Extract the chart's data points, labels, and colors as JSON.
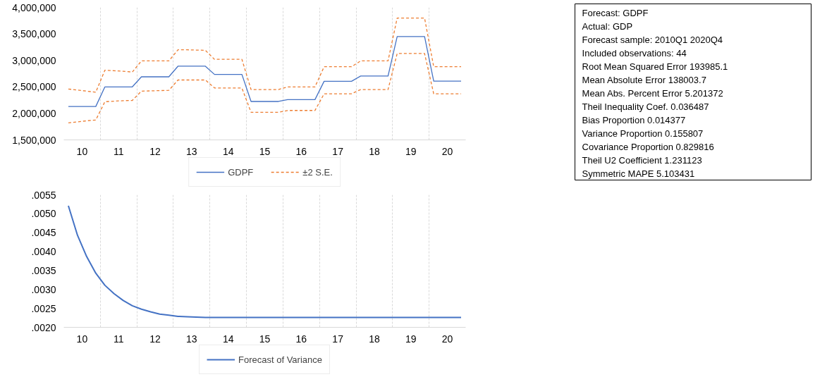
{
  "chart_data": [
    {
      "type": "line",
      "x": [
        9.625,
        9.875,
        10.125,
        10.375,
        10.625,
        10.875,
        11.125,
        11.375,
        11.625,
        11.875,
        12.125,
        12.375,
        12.625,
        12.875,
        13.125,
        13.375,
        13.625,
        13.875,
        14.125,
        14.375,
        14.625,
        14.875,
        15.125,
        15.375,
        15.625,
        15.875,
        16.125,
        16.375,
        16.625,
        16.875,
        17.125,
        17.375,
        17.625,
        17.875,
        18.125,
        18.375,
        18.625,
        18.875,
        19.125,
        19.375,
        19.625,
        19.875,
        20.125,
        20.375
      ],
      "xlim": [
        9.5,
        20.5
      ],
      "xticks": [
        10,
        {
          "value": 10.5,
          "label": null
        },
        11,
        {
          "value": 11.5,
          "label": null
        },
        12,
        {
          "value": 12.5,
          "label": null
        },
        13,
        {
          "value": 13.5,
          "label": null
        },
        14,
        {
          "value": 14.5,
          "label": null
        },
        15,
        {
          "value": 15.5,
          "label": null
        },
        16,
        {
          "value": 16.5,
          "label": null
        },
        17,
        {
          "value": 17.5,
          "label": null
        },
        18,
        {
          "value": 18.5,
          "label": null
        },
        19,
        {
          "value": 19.5,
          "label": null
        },
        20
      ],
      "ylim": [
        1500000,
        4000000
      ],
      "yticks": [
        {
          "value": 1500000,
          "label": "1,500,000"
        },
        {
          "value": 2000000,
          "label": "2,000,000"
        },
        {
          "value": 2500000,
          "label": "2,500,000"
        },
        {
          "value": 3000000,
          "label": "3,000,000"
        },
        {
          "value": 3500000,
          "label": "3,500,000"
        },
        {
          "value": 4000000,
          "label": "4,000,000"
        }
      ],
      "grid": "x",
      "legend": "bottom",
      "series": [
        {
          "name": "GDPF",
          "color": "#4472c4",
          "line_style": "solid",
          "values": [
            2130000,
            2130000,
            2130000,
            2130000,
            2500000,
            2500000,
            2500000,
            2500000,
            2690000,
            2690000,
            2690000,
            2690000,
            2890000,
            2890000,
            2890000,
            2890000,
            2735000,
            2735000,
            2735000,
            2735000,
            2225000,
            2225000,
            2225000,
            2225000,
            2260000,
            2260000,
            2260000,
            2260000,
            2605000,
            2605000,
            2605000,
            2605000,
            2705000,
            2705000,
            2705000,
            2705000,
            3450000,
            3450000,
            3450000,
            3450000,
            2610000,
            2610000,
            2610000,
            2610000
          ]
        },
        {
          "name": "±2 S.E.",
          "color": "#ed7d31",
          "line_style": "dashed",
          "values": [
            2460000,
            2440000,
            2420000,
            2400000,
            2815000,
            2805000,
            2795000,
            2780000,
            2990000,
            2990000,
            2990000,
            2990000,
            3200000,
            3200000,
            3195000,
            3190000,
            3020000,
            3020000,
            3020000,
            3020000,
            2450000,
            2450000,
            2450000,
            2450000,
            2500000,
            2500000,
            2500000,
            2500000,
            2880000,
            2880000,
            2880000,
            2880000,
            2990000,
            2990000,
            2990000,
            2990000,
            3800000,
            3800000,
            3800000,
            3800000,
            2880000,
            2880000,
            2880000,
            2880000
          ]
        },
        {
          "color": "#ed7d31",
          "line_style": "dashed",
          "values": [
            1820000,
            1840000,
            1860000,
            1875000,
            2220000,
            2230000,
            2240000,
            2245000,
            2420000,
            2425000,
            2430000,
            2435000,
            2630000,
            2630000,
            2630000,
            2630000,
            2480000,
            2480000,
            2480000,
            2480000,
            2020000,
            2020000,
            2020000,
            2020000,
            2055000,
            2055000,
            2055000,
            2055000,
            2370000,
            2370000,
            2370000,
            2370000,
            2450000,
            2450000,
            2450000,
            2450000,
            3130000,
            3130000,
            3130000,
            3130000,
            2370000,
            2370000,
            2370000,
            2370000
          ]
        }
      ]
    },
    {
      "type": "other",
      "annotations": [
        "Forecast: GDPF",
        "Actual: GDP",
        "Forecast sample: 2010Q1 2020Q4",
        "Included observations: 44",
        "Root Mean Squared Error 193985.1",
        "Mean Absolute Error 138003.7",
        "Mean Abs. Percent Error 5.201372",
        "Theil Inequality Coef. 0.036487",
        "Bias Proportion 0.014377",
        "Variance Proportion 0.155807",
        "Covariance Proportion 0.829816",
        "Theil U2 Coefficient 1.231123",
        "Symmetric MAPE 5.103431"
      ]
    },
    {
      "type": "line",
      "x": [
        9.625,
        9.875,
        10.125,
        10.375,
        10.625,
        10.875,
        11.125,
        11.375,
        11.625,
        11.875,
        12.125,
        12.375,
        12.625,
        12.875,
        13.125,
        13.375,
        13.625,
        13.875,
        14.125,
        14.375,
        14.625,
        14.875,
        15.125,
        15.375,
        15.625,
        15.875,
        16.125,
        16.375,
        16.625,
        16.875,
        17.125,
        17.375,
        17.625,
        17.875,
        18.125,
        18.375,
        18.625,
        18.875,
        19.125,
        19.375,
        19.625,
        19.875,
        20.125,
        20.375
      ],
      "xlim": [
        9.5,
        20.5
      ],
      "xticks": [
        10,
        {
          "value": 10.5,
          "label": null
        },
        11,
        {
          "value": 11.5,
          "label": null
        },
        12,
        {
          "value": 12.5,
          "label": null
        },
        13,
        {
          "value": 13.5,
          "label": null
        },
        14,
        {
          "value": 14.5,
          "label": null
        },
        15,
        {
          "value": 15.5,
          "label": null
        },
        16,
        {
          "value": 16.5,
          "label": null
        },
        17,
        {
          "value": 17.5,
          "label": null
        },
        18,
        {
          "value": 18.5,
          "label": null
        },
        19,
        {
          "value": 19.5,
          "label": null
        },
        20
      ],
      "ylim": [
        0.002,
        0.0055
      ],
      "yticks": [
        {
          "value": 0.002,
          "label": ".0020"
        },
        {
          "value": 0.0025,
          "label": ".0025"
        },
        {
          "value": 0.003,
          "label": ".0030"
        },
        {
          "value": 0.0035,
          "label": ".0035"
        },
        {
          "value": 0.004,
          "label": ".0040"
        },
        {
          "value": 0.0045,
          "label": ".0045"
        },
        {
          "value": 0.005,
          "label": ".0050"
        },
        {
          "value": 0.0055,
          "label": ".0055"
        }
      ],
      "grid": "x",
      "legend": "bottom",
      "series": [
        {
          "name": "Forecast of Variance",
          "color": "#4472c4",
          "line_style": "solid",
          "values": [
            0.00521,
            0.00443,
            0.00387,
            0.00343,
            0.00311,
            0.00289,
            0.00271,
            0.00257,
            0.00248,
            0.00241,
            0.00235,
            0.00232,
            0.00229,
            0.00228,
            0.00227,
            0.00226,
            0.00226,
            0.00226,
            0.00226,
            0.00226,
            0.00226,
            0.00226,
            0.00226,
            0.00226,
            0.00226,
            0.00226,
            0.00226,
            0.00226,
            0.00226,
            0.00226,
            0.00226,
            0.00226,
            0.00226,
            0.00226,
            0.00226,
            0.00226,
            0.00226,
            0.00226,
            0.00226,
            0.00226,
            0.00226,
            0.00226,
            0.00226,
            0.00226
          ]
        }
      ]
    }
  ]
}
